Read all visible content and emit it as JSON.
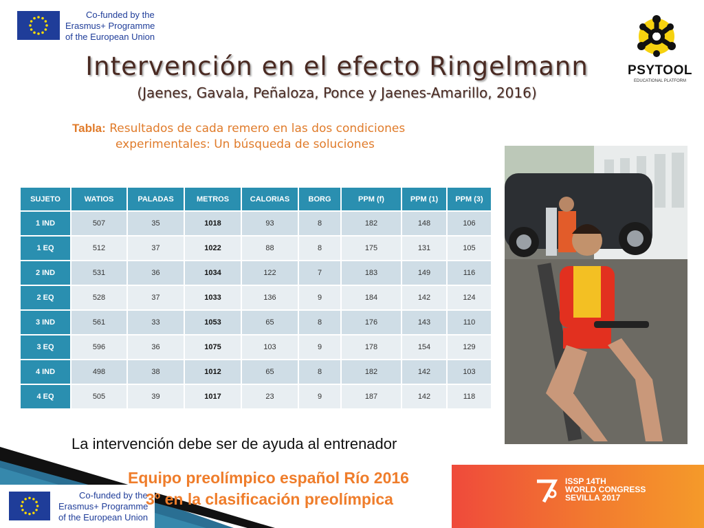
{
  "header": {
    "eu_lines": [
      "Co-funded by the",
      "Erasmus+ Programme",
      "of the European Union"
    ],
    "psytool_name": "PSYTOOL",
    "psytool_tagline": "EDUCATIONAL PLATFORM"
  },
  "slide": {
    "title": "Intervención en el efecto Ringelmann",
    "subtitle": "(Jaenes, Gavala, Peñaloza, Ponce y Jaenes-Amarillo, 2016)",
    "caption_label": "Tabla:",
    "caption_line1": " Resultados de cada remero en las dos condiciones",
    "caption_line2": "experimentales: Un búsqueda de soluciones",
    "note": "La intervención debe ser de ayuda al entrenador",
    "footer_line1": "Equipo preolímpico español Río 2016",
    "footer_line2": "3º en la clasificación preolímpica"
  },
  "table": {
    "headers": [
      "SUJETO",
      "WATIOS",
      "PALADAS",
      "METROS",
      "CALORIAS",
      "BORG",
      "PPM (f)",
      "PPM (1)",
      "PPM (3)"
    ],
    "rows": [
      [
        "1 IND",
        "507",
        "35",
        "1018",
        "93",
        "8",
        "182",
        "148",
        "106"
      ],
      [
        "1 EQ",
        "512",
        "37",
        "1022",
        "88",
        "8",
        "175",
        "131",
        "105"
      ],
      [
        "2 IND",
        "531",
        "36",
        "1034",
        "122",
        "7",
        "183",
        "149",
        "116"
      ],
      [
        "2 EQ",
        "528",
        "37",
        "1033",
        "136",
        "9",
        "184",
        "142",
        "124"
      ],
      [
        "3 IND",
        "561",
        "33",
        "1053",
        "65",
        "8",
        "176",
        "143",
        "110"
      ],
      [
        "3 EQ",
        "596",
        "36",
        "1075",
        "103",
        "9",
        "178",
        "154",
        "129"
      ],
      [
        "4 IND",
        "498",
        "38",
        "1012",
        "65",
        "8",
        "182",
        "142",
        "103"
      ],
      [
        "4 EQ",
        "505",
        "39",
        "1017",
        "23",
        "9",
        "187",
        "142",
        "118"
      ]
    ]
  },
  "congress": {
    "lines": [
      "ISSP 14TH",
      "WORLD CONGRESS",
      "SEVILLA 2017"
    ]
  },
  "colors": {
    "table_header": "#2a8fb0",
    "accent_orange": "#ef7d2b",
    "title_brown": "#4a2a22",
    "eu_blue": "#1f3d99"
  }
}
